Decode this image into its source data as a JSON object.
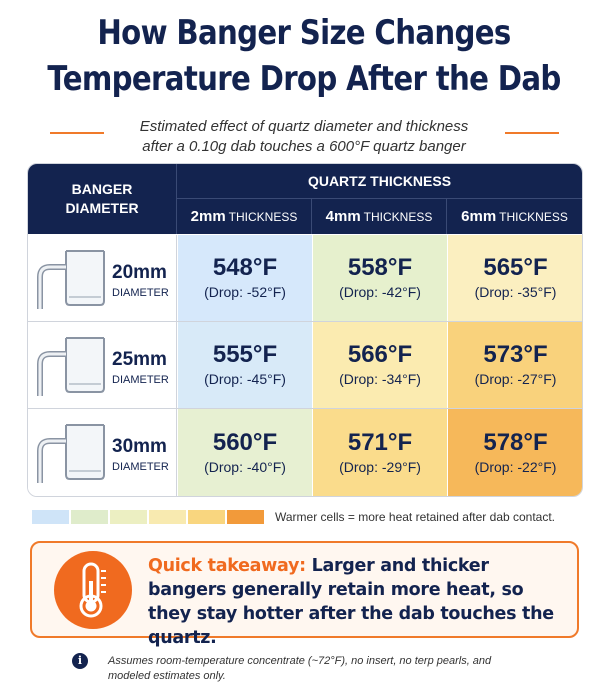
{
  "title_line1": "How Banger Size Changes",
  "title_line2": "Temperature Drop After the Dab",
  "subtitle_line1": "Estimated effect of quartz diameter and thickness",
  "subtitle_line2": "after a 0.10g dab touches a 600°F quartz banger",
  "table": {
    "corner_header_line1": "BANGER",
    "corner_header_line2": "DIAMETER",
    "group_header": "QUARTZ THICKNESS",
    "columns": [
      {
        "size": "2mm",
        "unit": "THICKNESS"
      },
      {
        "size": "4mm",
        "unit": "THICKNESS"
      },
      {
        "size": "6mm",
        "unit": "THICKNESS"
      }
    ],
    "rows": [
      {
        "size": "20mm",
        "unit": "DIAMETER",
        "icon": "banger-icon",
        "cells": [
          {
            "temp": "548°F",
            "drop": "(Drop: -52°F)",
            "color": "#d6e8fb"
          },
          {
            "temp": "558°F",
            "drop": "(Drop: -42°F)",
            "color": "#e6f0cd"
          },
          {
            "temp": "565°F",
            "drop": "(Drop: -35°F)",
            "color": "#fbefc0"
          }
        ]
      },
      {
        "size": "25mm",
        "unit": "DIAMETER",
        "icon": "banger-icon",
        "cells": [
          {
            "temp": "555°F",
            "drop": "(Drop: -45°F)",
            "color": "#d8eaf8"
          },
          {
            "temp": "566°F",
            "drop": "(Drop: -34°F)",
            "color": "#fbebb0"
          },
          {
            "temp": "573°F",
            "drop": "(Drop: -27°F)",
            "color": "#f9d27c"
          }
        ]
      },
      {
        "size": "30mm",
        "unit": "DIAMETER",
        "icon": "banger-icon",
        "cells": [
          {
            "temp": "560°F",
            "drop": "(Drop: -40°F)",
            "color": "#e7f0d2"
          },
          {
            "temp": "571°F",
            "drop": "(Drop: -29°F)",
            "color": "#fadc8c"
          },
          {
            "temp": "578°F",
            "drop": "(Drop: -22°F)",
            "color": "#f6b85a"
          }
        ]
      }
    ]
  },
  "legend": {
    "colors": [
      "#cfe4f8",
      "#dfeccb",
      "#ecefc2",
      "#f8eab0",
      "#f9d67f",
      "#f5bb58",
      "#f29a3a"
    ],
    "text": "Warmer cells = more heat retained after dab contact."
  },
  "takeaway": {
    "icon": "thermometer-icon",
    "lead": "Quick takeaway:",
    "body": " Larger and thicker bangers generally retain more heat, so they stay hotter after the dab touches the quartz."
  },
  "note": {
    "icon": "info-icon",
    "text": "Assumes room-temperature concentrate (~72°F), no insert, no terp pearls, and modeled estimates only."
  },
  "colors": {
    "navy": "#13234f",
    "accent_orange": "#f06a1f"
  }
}
